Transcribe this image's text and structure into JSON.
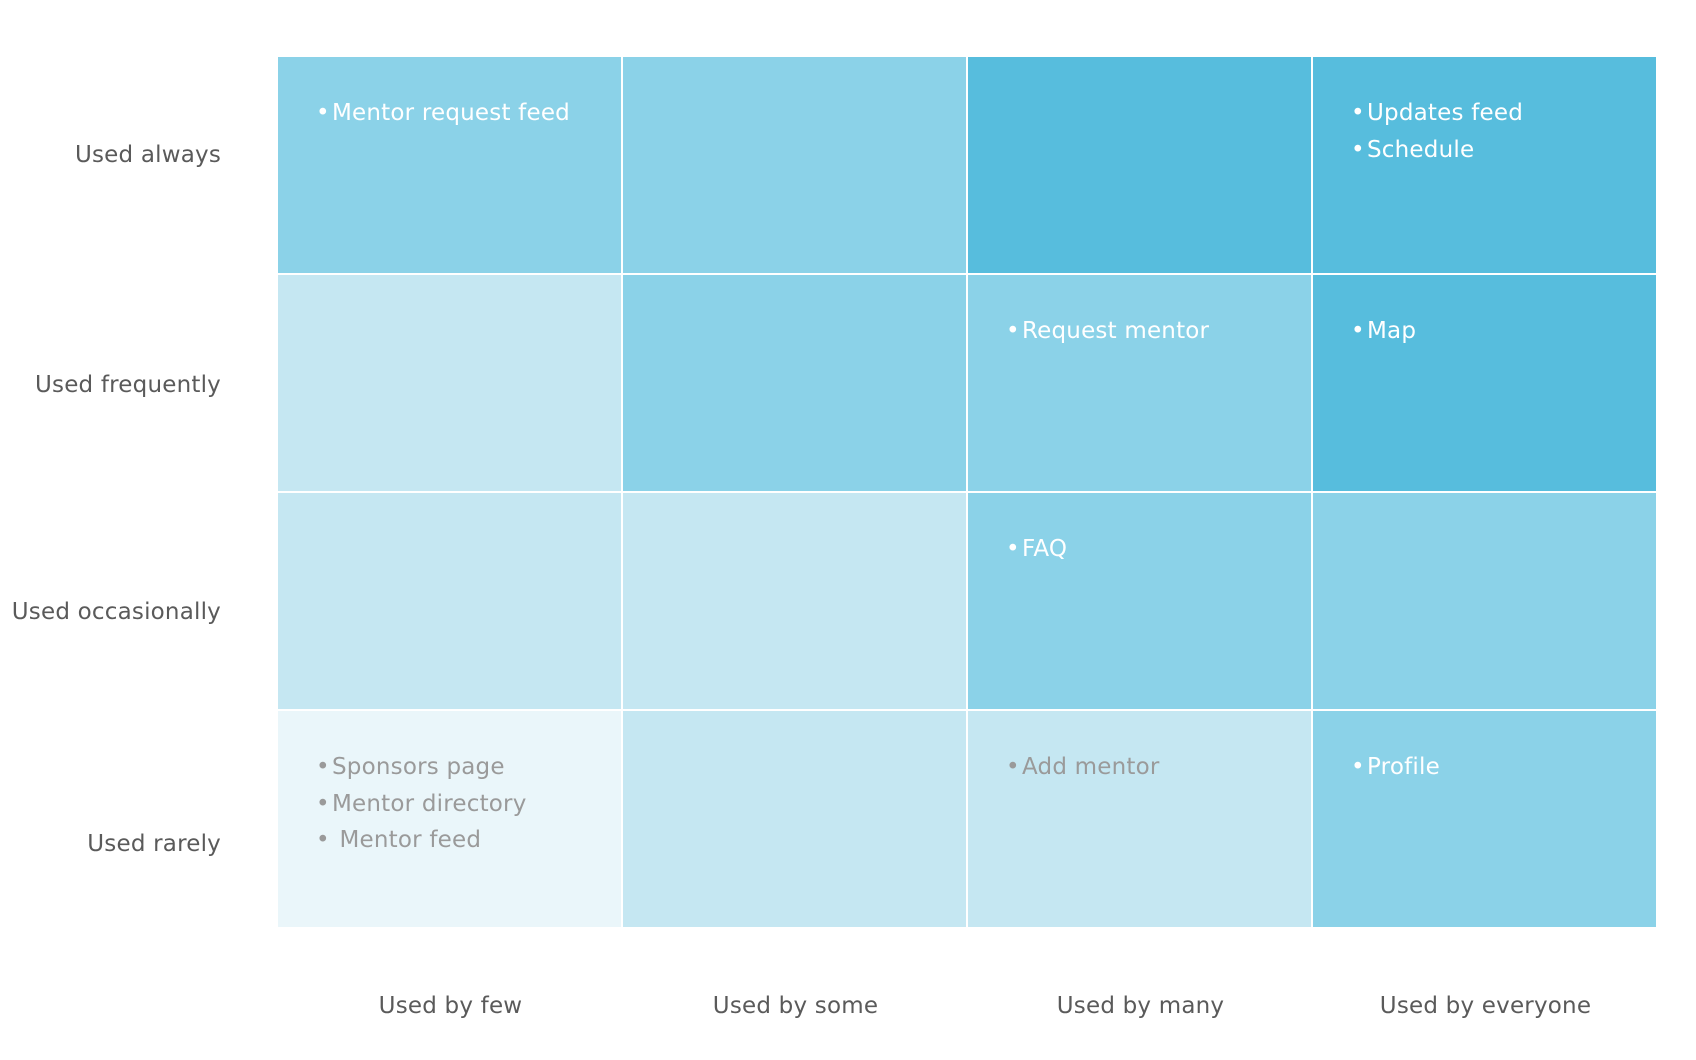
{
  "colors": {
    "level1": "#eaf6fa",
    "level2": "#c5e7f2",
    "level3": "#8bd2e8",
    "level4": "#57bddd",
    "text_on_light": "#9a9a9a",
    "text_on_dark": "#ffffff",
    "label": "#5a5a5a"
  },
  "rows": [
    "Used always",
    "Used frequently",
    "Used occasionally",
    "Used rarely"
  ],
  "columns": [
    "Used by few",
    "Used by some",
    "Used by many",
    "Used by everyone"
  ],
  "cells": [
    [
      {
        "level": 3,
        "items": [
          "Mentor request feed"
        ]
      },
      {
        "level": 3,
        "items": []
      },
      {
        "level": 4,
        "items": []
      },
      {
        "level": 4,
        "items": [
          "Updates feed",
          "Schedule"
        ]
      }
    ],
    [
      {
        "level": 2,
        "items": []
      },
      {
        "level": 3,
        "items": []
      },
      {
        "level": 3,
        "items": [
          "Request mentor"
        ]
      },
      {
        "level": 4,
        "items": [
          "Map"
        ]
      }
    ],
    [
      {
        "level": 2,
        "items": []
      },
      {
        "level": 2,
        "items": []
      },
      {
        "level": 3,
        "items": [
          "FAQ"
        ]
      },
      {
        "level": 3,
        "items": []
      }
    ],
    [
      {
        "level": 1,
        "items": [
          "Sponsors page",
          "Mentor directory",
          " Mentor feed"
        ]
      },
      {
        "level": 2,
        "items": []
      },
      {
        "level": 2,
        "items": [
          "Add mentor"
        ]
      },
      {
        "level": 3,
        "items": [
          "Profile"
        ]
      }
    ]
  ]
}
